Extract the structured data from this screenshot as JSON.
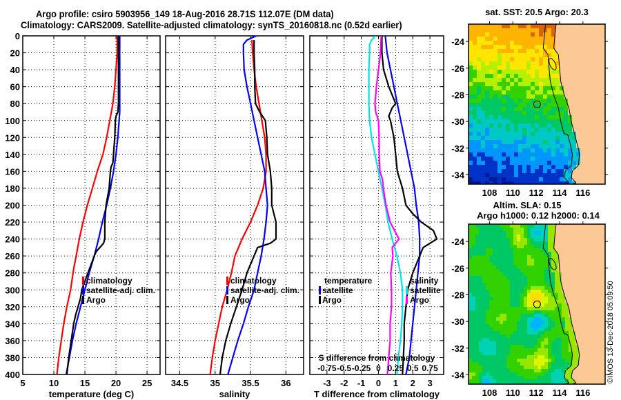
{
  "header": {
    "title_line1": "Argo profile: csiro 5903956_149 18-Aug-2016 28.71S 112.07E (DM data)",
    "title_line2": "Climatology: CARS2009. Satellite-adjusted climatology: synTS_20160818.nc (0.52d earlier)"
  },
  "colors": {
    "climatology": "#ff0000",
    "satellite": "#0000ff",
    "argo": "#000000",
    "sal_satellite": "#00e5e5",
    "sal_argo": "#ff00ff",
    "land": "#fcc896"
  },
  "footer": {
    "copyright": "©IMOS 13-Dec-2018 05:09:50"
  },
  "chart_data": [
    {
      "type": "line",
      "name": "temperature-profile",
      "xlabel": "temperature (deg C)",
      "ylabel": "",
      "xlim": [
        5,
        27.1
      ],
      "ylim": [
        400,
        0
      ],
      "xticks": [
        5,
        10,
        15,
        20,
        25
      ],
      "yticks": [
        0,
        20,
        40,
        60,
        80,
        100,
        120,
        140,
        160,
        180,
        200,
        220,
        240,
        260,
        280,
        300,
        320,
        340,
        360,
        380,
        400
      ],
      "grid": true,
      "legend": {
        "position": "center-right",
        "entries": [
          "climatology",
          "satellite-adj. clim.",
          "Argo"
        ]
      },
      "series": [
        {
          "name": "climatology",
          "color": "#ff0000",
          "depth": [
            0,
            20,
            40,
            60,
            80,
            100,
            120,
            140,
            160,
            180,
            200,
            220,
            240,
            260,
            275,
            300,
            320,
            340,
            360,
            380,
            400
          ],
          "values": [
            20.2,
            20.2,
            20.0,
            19.8,
            19.5,
            19.0,
            18.5,
            17.9,
            17.0,
            16.2,
            15.4,
            14.7,
            14.1,
            13.6,
            13.2,
            12.7,
            12.1,
            11.6,
            11.2,
            10.8,
            10.5
          ]
        },
        {
          "name": "satellite-adj. clim.",
          "color": "#0000ff",
          "depth": [
            0,
            20,
            40,
            60,
            80,
            90,
            100,
            120,
            140,
            160,
            180,
            200,
            220,
            240,
            260,
            280,
            300,
            320,
            340,
            360,
            380,
            400
          ],
          "values": [
            20.6,
            20.6,
            20.6,
            20.6,
            20.6,
            20.6,
            20.5,
            20.3,
            20.0,
            19.6,
            19.1,
            18.5,
            17.8,
            17.2,
            16.5,
            15.7,
            15.0,
            14.3,
            13.6,
            13.0,
            12.5,
            12.0
          ]
        },
        {
          "name": "Argo",
          "color": "#000000",
          "depth": [
            0,
            20,
            40,
            60,
            80,
            90,
            95,
            100,
            120,
            140,
            150,
            155,
            160,
            180,
            200,
            220,
            240,
            245,
            250,
            255,
            260,
            280,
            300,
            310,
            320,
            330,
            340,
            360,
            380,
            400
          ],
          "values": [
            20.4,
            20.4,
            20.4,
            20.4,
            20.4,
            20.3,
            20.0,
            19.9,
            19.8,
            19.6,
            19.5,
            19.2,
            19.1,
            18.9,
            18.4,
            18.2,
            18.2,
            18.0,
            17.4,
            16.8,
            16.5,
            15.5,
            14.5,
            14.3,
            13.9,
            13.5,
            13.2,
            12.8,
            12.4,
            12.1
          ]
        }
      ]
    },
    {
      "type": "line",
      "name": "salinity-profile",
      "xlabel": "salinity",
      "ylabel": "",
      "xlim": [
        34.3,
        36.25
      ],
      "ylim": [
        400,
        0
      ],
      "xticks": [
        34.5,
        35,
        35.5,
        36
      ],
      "grid": true,
      "legend": {
        "position": "center-right",
        "entries": [
          "climatology",
          "satellite-adj. clim.",
          "Argo"
        ]
      },
      "series": [
        {
          "name": "climatology",
          "color": "#ff0000",
          "depth": [
            5,
            20,
            40,
            60,
            80,
            100,
            120,
            140,
            160,
            180,
            200,
            220,
            240,
            260,
            280,
            300,
            320,
            340,
            360,
            380,
            400
          ],
          "values": [
            35.52,
            35.53,
            35.55,
            35.58,
            35.62,
            35.66,
            35.7,
            35.72,
            35.72,
            35.68,
            35.6,
            35.5,
            35.38,
            35.28,
            35.23,
            35.17,
            35.1,
            35.05,
            35.0,
            34.96,
            34.93
          ]
        },
        {
          "name": "satellite-adj. clim.",
          "color": "#0000ff",
          "depth": [
            0,
            5,
            10,
            20,
            40,
            60,
            80,
            100,
            120,
            140,
            160,
            180,
            200,
            220,
            240,
            260,
            280,
            300,
            320,
            340,
            360,
            380,
            400
          ],
          "values": [
            35.58,
            35.45,
            35.4,
            35.4,
            35.41,
            35.45,
            35.5,
            35.55,
            35.6,
            35.65,
            35.7,
            35.72,
            35.74,
            35.72,
            35.69,
            35.65,
            35.6,
            35.55,
            35.47,
            35.4,
            35.32,
            35.25,
            35.18
          ]
        },
        {
          "name": "Argo",
          "color": "#000000",
          "depth": [
            5,
            20,
            40,
            60,
            80,
            90,
            100,
            120,
            140,
            160,
            180,
            200,
            220,
            240,
            245,
            250,
            260,
            280,
            300,
            320,
            340,
            360,
            380,
            400
          ],
          "values": [
            35.55,
            35.55,
            35.56,
            35.56,
            35.57,
            35.63,
            35.71,
            35.73,
            35.74,
            35.78,
            35.8,
            35.8,
            35.86,
            35.86,
            35.78,
            35.6,
            35.55,
            35.45,
            35.38,
            35.3,
            35.22,
            35.15,
            35.1,
            35.07
          ]
        }
      ]
    },
    {
      "type": "line",
      "name": "difference-profile",
      "xlabel": "T difference from climatology",
      "x2label": "S difference from climatology",
      "xlim": [
        -4,
        3.8
      ],
      "x2lim": [
        -1,
        0.95
      ],
      "ylim": [
        400,
        0
      ],
      "xticks": [
        -3,
        -2,
        -1,
        0,
        1,
        2,
        3
      ],
      "x2ticks": [
        -0.75,
        -0.5,
        -0.25,
        0,
        0.25,
        0.5,
        0.75
      ],
      "grid": true,
      "legend": {
        "position": "center",
        "groups": [
          {
            "title": "temperature",
            "entries": [
              "satellite",
              "Argo"
            ]
          },
          {
            "title": "salinity",
            "entries": [
              "satellite",
              "Argo"
            ]
          }
        ]
      },
      "series": [
        {
          "name": "temperature satellite",
          "color": "#0000ff",
          "axis": "T",
          "depth": [
            0,
            20,
            40,
            60,
            80,
            100,
            120,
            140,
            160,
            180,
            200,
            220,
            240,
            260,
            280,
            300,
            320,
            340,
            360,
            380,
            400
          ],
          "values": [
            0.4,
            0.5,
            0.7,
            0.9,
            1.1,
            1.3,
            1.5,
            1.7,
            1.9,
            2.1,
            2.2,
            2.35,
            2.4,
            2.4,
            2.3,
            2.2,
            2.1,
            2.0,
            1.9,
            1.8,
            1.6
          ]
        },
        {
          "name": "temperature Argo",
          "color": "#000000",
          "axis": "T",
          "depth": [
            0,
            20,
            40,
            60,
            80,
            85,
            95,
            100,
            120,
            140,
            160,
            180,
            200,
            210,
            220,
            230,
            240,
            250,
            260,
            280,
            300,
            320,
            340,
            360,
            380,
            400
          ],
          "values": [
            0.2,
            0.2,
            0.3,
            0.6,
            1.0,
            0.8,
            0.6,
            0.7,
            0.9,
            1.0,
            1.1,
            1.4,
            1.6,
            2.0,
            2.5,
            3.2,
            3.4,
            2.6,
            2.4,
            2.0,
            1.7,
            1.6,
            1.5,
            1.5,
            1.45,
            1.4
          ]
        },
        {
          "name": "salinity satellite",
          "color": "#00e5e5",
          "axis": "S",
          "depth": [
            0,
            5,
            10,
            20,
            40,
            60,
            80,
            100,
            120,
            140,
            160,
            180,
            200,
            220,
            240,
            260,
            280,
            300,
            320,
            340,
            360,
            380,
            400
          ],
          "values": [
            -0.04,
            -0.1,
            -0.13,
            -0.13,
            -0.14,
            -0.14,
            -0.14,
            -0.13,
            -0.1,
            -0.05,
            0.0,
            0.05,
            0.1,
            0.14,
            0.2,
            0.27,
            0.32,
            0.35,
            0.35,
            0.34,
            0.32,
            0.29,
            0.27
          ]
        },
        {
          "name": "salinity Argo",
          "color": "#ff00ff",
          "axis": "S",
          "depth": [
            0,
            20,
            40,
            60,
            80,
            90,
            100,
            120,
            140,
            160,
            170,
            180,
            200,
            220,
            240,
            250,
            260,
            280,
            300,
            320,
            340,
            360,
            380,
            400
          ],
          "values": [
            0.04,
            0.03,
            0.0,
            -0.03,
            -0.05,
            -0.04,
            0.0,
            0.01,
            0.01,
            0.02,
            0.06,
            0.07,
            0.11,
            0.17,
            0.3,
            0.2,
            0.21,
            0.18,
            0.19,
            0.19,
            0.17,
            0.17,
            0.15,
            0.13
          ]
        }
      ]
    },
    {
      "type": "heatmap",
      "name": "sst-map",
      "title": "sat. SST: 20.5 Argo: 20.3",
      "xlim": [
        106.2,
        117.9
      ],
      "ylim": [
        -34.7,
        -22.7
      ],
      "xticks": [
        108,
        110,
        112,
        114,
        116
      ],
      "yticks": [
        -24,
        -26,
        -28,
        -30,
        -32,
        -34
      ],
      "marker": {
        "lon": 112.07,
        "lat": -28.71
      }
    },
    {
      "type": "heatmap",
      "name": "sla-map",
      "title": "Altim. SLA: 0.15",
      "subtitle": "Argo h1000: 0.12 h2000: 0.14",
      "xlim": [
        106.2,
        117.9
      ],
      "ylim": [
        -34.7,
        -22.7
      ],
      "xticks": [
        108,
        110,
        112,
        114,
        116
      ],
      "yticks": [
        -24,
        -26,
        -28,
        -30,
        -32,
        -34
      ],
      "marker": {
        "lon": 112.07,
        "lat": -28.71
      }
    }
  ]
}
